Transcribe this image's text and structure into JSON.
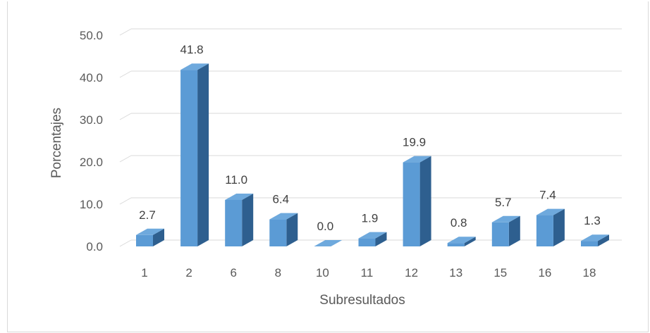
{
  "chart_data": {
    "type": "bar",
    "title": "",
    "xlabel": "Subresultados",
    "ylabel": "Porcentajes",
    "categories": [
      "1",
      "2",
      "6",
      "8",
      "10",
      "11",
      "12",
      "13",
      "15",
      "16",
      "18"
    ],
    "values": [
      2.7,
      41.8,
      11.0,
      6.4,
      0.0,
      1.9,
      19.9,
      0.8,
      5.7,
      7.4,
      1.3
    ],
    "value_labels": [
      "2.7",
      "41.8",
      "11.0",
      "6.4",
      "0.0",
      "1.9",
      "19.9",
      "0.8",
      "5.7",
      "7.4",
      "1.3"
    ],
    "ylim": [
      0,
      50
    ],
    "yticks": [
      "0.0",
      "10.0",
      "20.0",
      "30.0",
      "40.0",
      "50.0"
    ],
    "grid": true,
    "style": "3d-column",
    "colors": {
      "front": "#5b9bd5",
      "side": "#2e5f8f",
      "top": "#6ea9dd",
      "grid": "#d9d9d9"
    }
  }
}
